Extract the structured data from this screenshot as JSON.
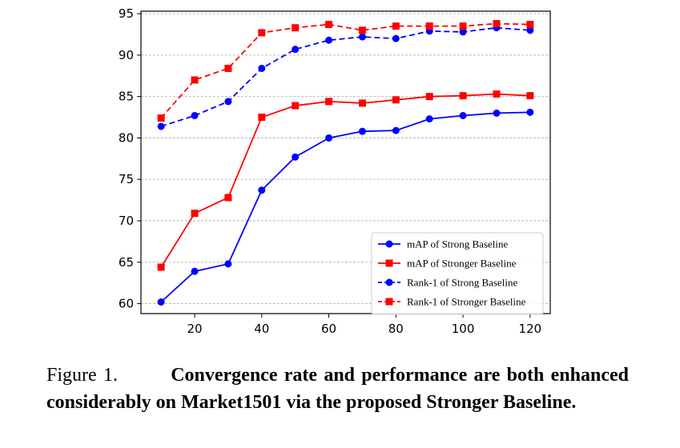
{
  "chart_data": {
    "type": "line",
    "x": [
      10,
      20,
      30,
      40,
      50,
      60,
      70,
      80,
      90,
      100,
      110,
      120
    ],
    "xticks": [
      20,
      40,
      60,
      80,
      100,
      120
    ],
    "yticks": [
      60,
      65,
      70,
      75,
      80,
      85,
      90,
      95
    ],
    "xlim": [
      4,
      126
    ],
    "ylim": [
      58.8,
      95.3
    ],
    "grid": "horizontal dashed",
    "legend_position": "lower-right",
    "series": [
      {
        "name": "mAP of Strong Baseline",
        "color": "#0000ff",
        "linestyle": "solid",
        "marker": "circle",
        "values": [
          60.2,
          63.9,
          64.8,
          73.7,
          77.7,
          80.0,
          80.8,
          80.9,
          82.3,
          82.7,
          83.0,
          83.1
        ]
      },
      {
        "name": "mAP of Stronger Baseline",
        "color": "#ff0000",
        "linestyle": "solid",
        "marker": "square",
        "values": [
          64.4,
          70.9,
          72.8,
          82.5,
          83.9,
          84.4,
          84.2,
          84.6,
          85.0,
          85.1,
          85.3,
          85.1
        ]
      },
      {
        "name": "Rank-1 of Strong Baseline",
        "color": "#0000ff",
        "linestyle": "dashed",
        "marker": "circle",
        "values": [
          81.4,
          82.7,
          84.4,
          88.4,
          90.7,
          91.8,
          92.2,
          92.0,
          92.9,
          92.8,
          93.3,
          93.0
        ]
      },
      {
        "name": "Rank-1 of Stronger Baseline",
        "color": "#ff0000",
        "linestyle": "dashed",
        "marker": "square",
        "values": [
          82.4,
          87.0,
          88.4,
          92.7,
          93.3,
          93.7,
          93.0,
          93.5,
          93.5,
          93.5,
          93.8,
          93.7
        ]
      }
    ]
  },
  "caption": {
    "label": "Figure 1.",
    "text": "Convergence rate and performance are both enhanced considerably on Market1501 via the proposed Stronger Baseline."
  }
}
